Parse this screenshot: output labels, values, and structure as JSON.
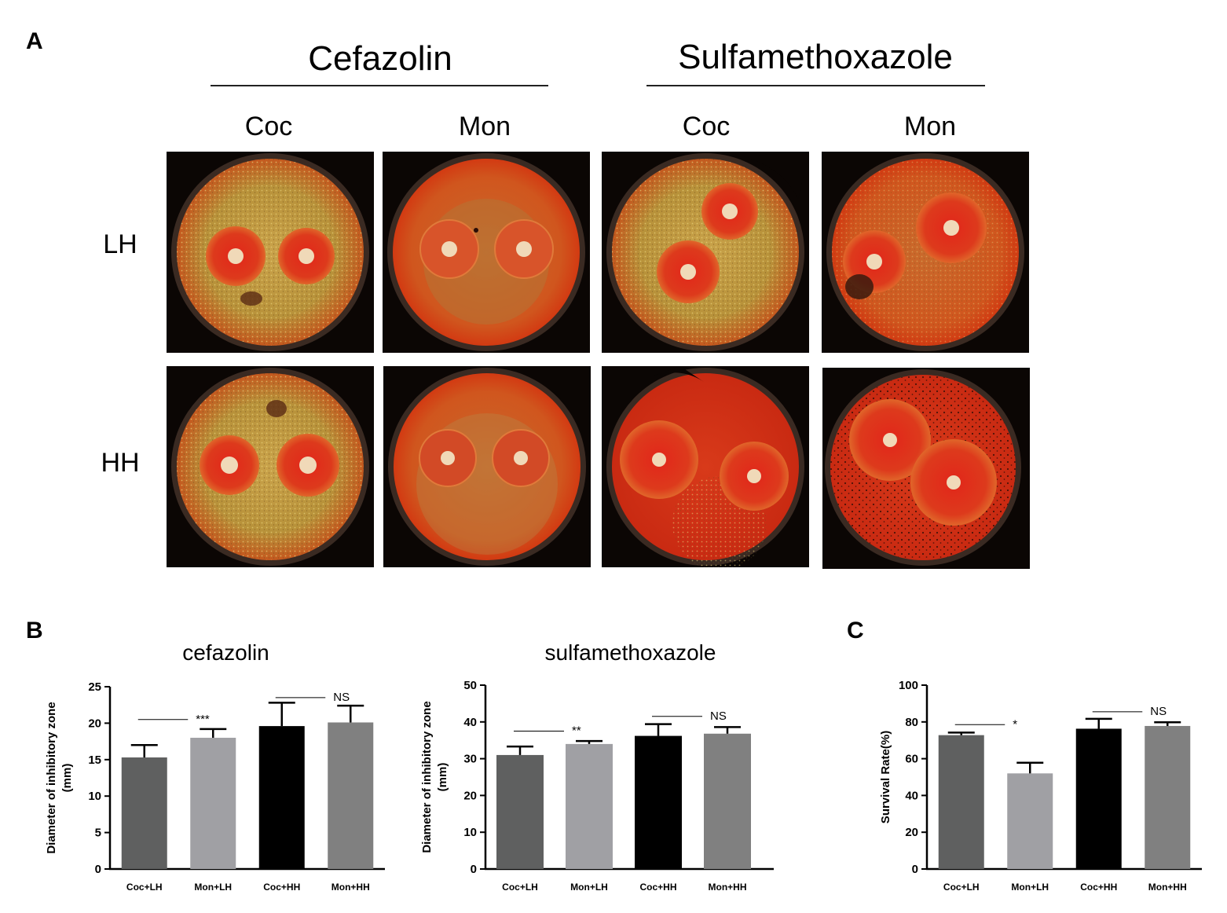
{
  "panelA": {
    "letter": "A",
    "drugs": [
      "Cefazolin",
      "Sulfamethoxazole"
    ],
    "columns": [
      "Coc",
      "Mon",
      "Coc",
      "Mon"
    ],
    "rows": [
      "LH",
      "HH"
    ]
  },
  "panelB": {
    "letter": "B"
  },
  "panelC": {
    "letter": "C"
  },
  "chart_data": [
    {
      "type": "bar",
      "title": "cefazolin",
      "ylabel": "Diameter of inhibitory zone\n(mm)",
      "categories": [
        "Coc+LH",
        "Mon+LH",
        "Coc+HH",
        "Mon+HH"
      ],
      "values": [
        15.3,
        18.0,
        19.6,
        20.1
      ],
      "errors": [
        1.7,
        1.2,
        3.2,
        2.3
      ],
      "ylim": [
        0,
        25
      ],
      "yticks": [
        0,
        5,
        10,
        15,
        20,
        25
      ],
      "bar_colors": [
        "#5f6060",
        "#a0a0a4",
        "#000000",
        "#808080"
      ],
      "annotations": [
        {
          "text": "***",
          "from": 0,
          "to": 1,
          "y": 20.5
        },
        {
          "text": "NS",
          "from": 2,
          "to": 3,
          "y": 23.5
        }
      ]
    },
    {
      "type": "bar",
      "title": "sulfamethoxazole",
      "ylabel": "Diameter of inhibitory zone\n(mm)",
      "categories": [
        "Coc+LH",
        "Mon+LH",
        "Coc+HH",
        "Mon+HH"
      ],
      "values": [
        31.0,
        34.0,
        36.2,
        36.8
      ],
      "errors": [
        2.3,
        0.8,
        3.2,
        1.8
      ],
      "ylim": [
        0,
        50
      ],
      "yticks": [
        0,
        10,
        20,
        30,
        40,
        50
      ],
      "bar_colors": [
        "#5f6060",
        "#a0a0a4",
        "#000000",
        "#808080"
      ],
      "annotations": [
        {
          "text": "**",
          "from": 0,
          "to": 1,
          "y": 37.5
        },
        {
          "text": "NS",
          "from": 2,
          "to": 3,
          "y": 41.5
        }
      ]
    },
    {
      "type": "bar",
      "title": "",
      "ylabel": "Survival Rate(%)",
      "categories": [
        "Coc+LH",
        "Mon+LH",
        "Coc+HH",
        "Mon+HH"
      ],
      "values": [
        72.8,
        52.0,
        76.3,
        77.8
      ],
      "errors": [
        1.4,
        5.8,
        5.4,
        2.0
      ],
      "ylim": [
        0,
        100
      ],
      "yticks": [
        0,
        20,
        40,
        60,
        80,
        100
      ],
      "bar_colors": [
        "#5f6060",
        "#a0a0a4",
        "#000000",
        "#808080"
      ],
      "annotations": [
        {
          "text": "*",
          "from": 0,
          "to": 1,
          "y": 78.5
        },
        {
          "text": "NS",
          "from": 2,
          "to": 3,
          "y": 85.5
        }
      ]
    }
  ]
}
